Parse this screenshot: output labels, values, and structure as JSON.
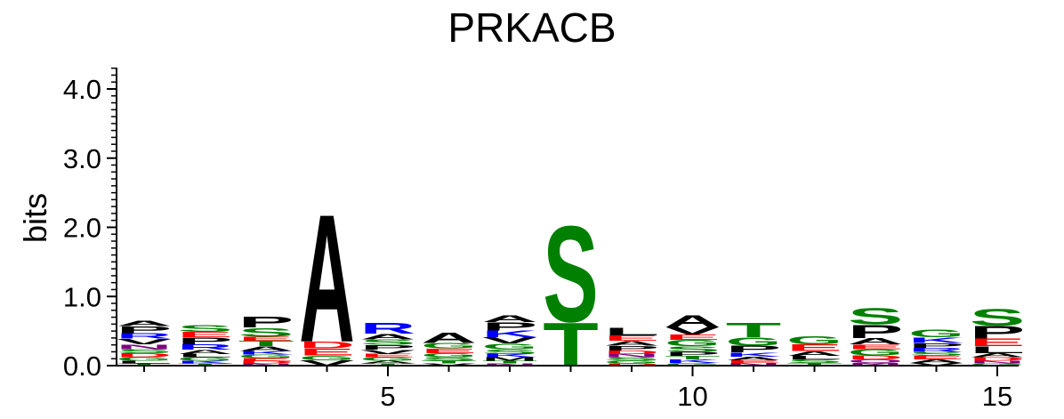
{
  "chart_data": {
    "type": "sequence-logo",
    "title": "PRKACB",
    "ylabel": "bits",
    "xlabel": "",
    "ylim": [
      0,
      4.3
    ],
    "y_ticks": [
      "0.0",
      "1.0",
      "2.0",
      "3.0",
      "4.0"
    ],
    "x_ticks": [
      "5",
      "10",
      "15"
    ],
    "colors": {
      "A": "#000000",
      "C": "#008000",
      "D": "#ff0000",
      "E": "#ff0000",
      "F": "#000000",
      "G": "#008000",
      "H": "#0000ff",
      "I": "#000000",
      "K": "#0000ff",
      "L": "#000000",
      "M": "#000000",
      "N": "#800080",
      "P": "#000000",
      "Q": "#800080",
      "R": "#0000ff",
      "S": "#008000",
      "T": "#008000",
      "V": "#000000",
      "W": "#000000",
      "Y": "#008000"
    },
    "positions": [
      {
        "position": 1,
        "letters": [
          {
            "aa": "T",
            "bits": 0.03
          },
          {
            "aa": "L",
            "bits": 0.04
          },
          {
            "aa": "G",
            "bits": 0.05
          },
          {
            "aa": "D",
            "bits": 0.06
          },
          {
            "aa": "S",
            "bits": 0.06
          },
          {
            "aa": "N",
            "bits": 0.07
          },
          {
            "aa": "V",
            "bits": 0.08
          },
          {
            "aa": "R",
            "bits": 0.08
          },
          {
            "aa": "P",
            "bits": 0.1
          },
          {
            "aa": "A",
            "bits": 0.08
          }
        ]
      },
      {
        "position": 2,
        "letters": [
          {
            "aa": "T",
            "bits": 0.03
          },
          {
            "aa": "K",
            "bits": 0.04
          },
          {
            "aa": "G",
            "bits": 0.05
          },
          {
            "aa": "L",
            "bits": 0.05
          },
          {
            "aa": "A",
            "bits": 0.06
          },
          {
            "aa": "R",
            "bits": 0.08
          },
          {
            "aa": "P",
            "bits": 0.1
          },
          {
            "aa": "E",
            "bits": 0.08
          },
          {
            "aa": "S",
            "bits": 0.1
          }
        ]
      },
      {
        "position": 3,
        "letters": [
          {
            "aa": "N",
            "bits": 0.03
          },
          {
            "aa": "D",
            "bits": 0.04
          },
          {
            "aa": "E",
            "bits": 0.04
          },
          {
            "aa": "G",
            "bits": 0.05
          },
          {
            "aa": "K",
            "bits": 0.05
          },
          {
            "aa": "A",
            "bits": 0.07
          },
          {
            "aa": "T",
            "bits": 0.08
          },
          {
            "aa": "E",
            "bits": 0.06
          },
          {
            "aa": "S",
            "bits": 0.13
          },
          {
            "aa": "P",
            "bits": 0.16
          }
        ]
      },
      {
        "position": 4,
        "letters": [
          {
            "aa": "V",
            "bits": 0.08
          },
          {
            "aa": "G",
            "bits": 0.07
          },
          {
            "aa": "E",
            "bits": 0.1
          },
          {
            "aa": "D",
            "bits": 0.1
          },
          {
            "aa": "A",
            "bits": 1.89
          }
        ]
      },
      {
        "position": 5,
        "letters": [
          {
            "aa": "T",
            "bits": 0.03
          },
          {
            "aa": "A",
            "bits": 0.04
          },
          {
            "aa": "G",
            "bits": 0.05
          },
          {
            "aa": "E",
            "bits": 0.05
          },
          {
            "aa": "V",
            "bits": 0.06
          },
          {
            "aa": "P",
            "bits": 0.07
          },
          {
            "aa": "S",
            "bits": 0.08
          },
          {
            "aa": "A",
            "bits": 0.08
          },
          {
            "aa": "R",
            "bits": 0.16
          }
        ]
      },
      {
        "position": 6,
        "letters": [
          {
            "aa": "V",
            "bits": 0.03
          },
          {
            "aa": "T",
            "bits": 0.04
          },
          {
            "aa": "S",
            "bits": 0.05
          },
          {
            "aa": "G",
            "bits": 0.06
          },
          {
            "aa": "E",
            "bits": 0.07
          },
          {
            "aa": "G",
            "bits": 0.08
          },
          {
            "aa": "A",
            "bits": 0.15
          }
        ]
      },
      {
        "position": 7,
        "letters": [
          {
            "aa": "N",
            "bits": 0.03
          },
          {
            "aa": "T",
            "bits": 0.04
          },
          {
            "aa": "M",
            "bits": 0.05
          },
          {
            "aa": "K",
            "bits": 0.05
          },
          {
            "aa": "S",
            "bits": 0.07
          },
          {
            "aa": "G",
            "bits": 0.08
          },
          {
            "aa": "V",
            "bits": 0.09
          },
          {
            "aa": "K",
            "bits": 0.1
          },
          {
            "aa": "P",
            "bits": 0.12
          },
          {
            "aa": "A",
            "bits": 0.1
          }
        ]
      },
      {
        "position": 8,
        "letters": [
          {
            "aa": "T",
            "bits": 0.64
          },
          {
            "aa": "S",
            "bits": 1.42
          }
        ]
      },
      {
        "position": 9,
        "letters": [
          {
            "aa": "D",
            "bits": 0.03
          },
          {
            "aa": "G",
            "bits": 0.04
          },
          {
            "aa": "S",
            "bits": 0.05
          },
          {
            "aa": "N",
            "bits": 0.05
          },
          {
            "aa": "D",
            "bits": 0.05
          },
          {
            "aa": "P",
            "bits": 0.07
          },
          {
            "aa": "A",
            "bits": 0.07
          },
          {
            "aa": "E",
            "bits": 0.08
          },
          {
            "aa": "L",
            "bits": 0.11
          }
        ]
      },
      {
        "position": 10,
        "letters": [
          {
            "aa": "G",
            "bits": 0.04
          },
          {
            "aa": "K",
            "bits": 0.05
          },
          {
            "aa": "T",
            "bits": 0.05
          },
          {
            "aa": "P",
            "bits": 0.06
          },
          {
            "aa": "S",
            "bits": 0.08
          },
          {
            "aa": "G",
            "bits": 0.09
          },
          {
            "aa": "E",
            "bits": 0.08
          },
          {
            "aa": "V",
            "bits": 0.11
          },
          {
            "aa": "A",
            "bits": 0.17
          }
        ]
      },
      {
        "position": 11,
        "letters": [
          {
            "aa": "N",
            "bits": 0.04
          },
          {
            "aa": "E",
            "bits": 0.04
          },
          {
            "aa": "A",
            "bits": 0.05
          },
          {
            "aa": "K",
            "bits": 0.06
          },
          {
            "aa": "P",
            "bits": 0.1
          },
          {
            "aa": "G",
            "bits": 0.12
          },
          {
            "aa": "T",
            "bits": 0.21
          }
        ]
      },
      {
        "position": 12,
        "letters": [
          {
            "aa": "T",
            "bits": 0.04
          },
          {
            "aa": "S",
            "bits": 0.05
          },
          {
            "aa": "L",
            "bits": 0.05
          },
          {
            "aa": "A",
            "bits": 0.07
          },
          {
            "aa": "E",
            "bits": 0.1
          },
          {
            "aa": "G",
            "bits": 0.12
          }
        ]
      },
      {
        "position": 13,
        "letters": [
          {
            "aa": "N",
            "bits": 0.04
          },
          {
            "aa": "Q",
            "bits": 0.05
          },
          {
            "aa": "D",
            "bits": 0.06
          },
          {
            "aa": "G",
            "bits": 0.09
          },
          {
            "aa": "E",
            "bits": 0.07
          },
          {
            "aa": "A",
            "bits": 0.09
          },
          {
            "aa": "P",
            "bits": 0.2
          },
          {
            "aa": "S",
            "bits": 0.24
          }
        ]
      },
      {
        "position": 14,
        "letters": [
          {
            "aa": "V",
            "bits": 0.04
          },
          {
            "aa": "A",
            "bits": 0.05
          },
          {
            "aa": "E",
            "bits": 0.05
          },
          {
            "aa": "S",
            "bits": 0.06
          },
          {
            "aa": "R",
            "bits": 0.06
          },
          {
            "aa": "P",
            "bits": 0.07
          },
          {
            "aa": "K",
            "bits": 0.08
          },
          {
            "aa": "G",
            "bits": 0.11
          }
        ]
      },
      {
        "position": 15,
        "letters": [
          {
            "aa": "G",
            "bits": 0.03
          },
          {
            "aa": "N",
            "bits": 0.04
          },
          {
            "aa": "D",
            "bits": 0.05
          },
          {
            "aa": "A",
            "bits": 0.06
          },
          {
            "aa": "L",
            "bits": 0.1
          },
          {
            "aa": "E",
            "bits": 0.11
          },
          {
            "aa": "P",
            "bits": 0.19
          },
          {
            "aa": "S",
            "bits": 0.25
          }
        ]
      }
    ]
  }
}
